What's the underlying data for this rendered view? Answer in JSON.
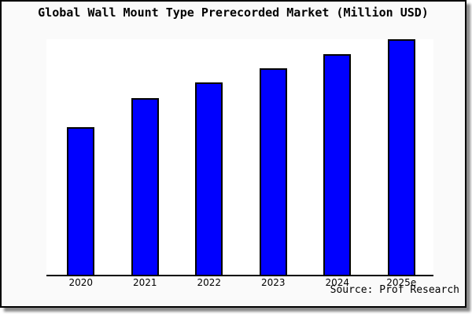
{
  "header": {
    "title": "Global Wall Mount Type Prerecorded Market (Million USD)"
  },
  "footer": {
    "source": "Source: Prof Research"
  },
  "colors": {
    "bar_fill": "#0000FF",
    "bar_border": "#000000",
    "frame_background": "#FAFAFA",
    "plot_background": "#FFFFFF",
    "axis": "#000000",
    "text": "#000000"
  },
  "chart_data": {
    "type": "bar",
    "title": "Global Wall Mount Type Prerecorded Market (Million USD)",
    "categories": [
      "2020",
      "2021",
      "2022",
      "2023",
      "2024",
      "2025e"
    ],
    "values": [
      188,
      225,
      245,
      263,
      281,
      300
    ],
    "values_note": "relative units estimated from bar pixel heights; chart shows no y-axis scale",
    "xlabel": "",
    "ylabel": "",
    "ylim": [
      0,
      300
    ],
    "grid": false,
    "legend": false,
    "y_axis_visible": false,
    "annotations": [
      "Source: Prof Research"
    ]
  }
}
